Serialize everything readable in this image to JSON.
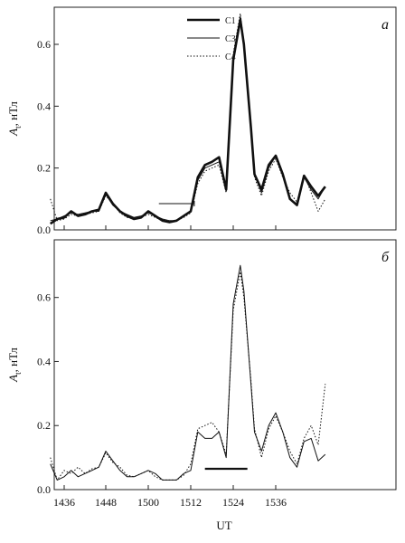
{
  "figure": {
    "xlabel": "UT",
    "x_tick_labels": [
      "1436",
      "1448",
      "1500",
      "1512",
      "1524",
      "1536"
    ]
  },
  "chart_data": [
    {
      "type": "line",
      "panel": "а",
      "ylabel_main": "A",
      "ylabel_sub": "t",
      "ylabel_unit": ", нТл",
      "ylim": [
        0,
        0.72
      ],
      "y_ticks": [
        0.0,
        0.2,
        0.4,
        0.6
      ],
      "y_tick_labels": [
        "0.0",
        "0.2",
        "0.4",
        "0.6"
      ],
      "xlim": [
        1431,
        1542
      ],
      "x_ticks": [
        1436,
        1448,
        1460,
        1472,
        1484,
        1496
      ],
      "legend_position": "top-center",
      "series": [
        {
          "name": "C1",
          "style": "thick-solid",
          "x": [
            1432,
            1434,
            1436,
            1438,
            1440,
            1442,
            1444,
            1446,
            1448,
            1450,
            1452,
            1454,
            1456,
            1458,
            1460,
            1462,
            1464,
            1466,
            1468,
            1470,
            1472,
            1474,
            1476,
            1478,
            1480,
            1482,
            1484,
            1486,
            1487,
            1489,
            1490,
            1492,
            1494,
            1496,
            1498,
            1500,
            1502,
            1504,
            1506,
            1508,
            1510
          ],
          "y": [
            0.02,
            0.035,
            0.04,
            0.06,
            0.045,
            0.05,
            0.06,
            0.065,
            0.12,
            0.085,
            0.06,
            0.045,
            0.035,
            0.04,
            0.06,
            0.045,
            0.03,
            0.025,
            0.03,
            0.045,
            0.06,
            0.17,
            0.21,
            0.22,
            0.235,
            0.13,
            0.55,
            0.68,
            0.6,
            0.33,
            0.18,
            0.13,
            0.21,
            0.24,
            0.18,
            0.1,
            0.08,
            0.175,
            0.14,
            0.11,
            0.14
          ]
        },
        {
          "name": "C3",
          "style": "thin-solid",
          "x": [
            1432,
            1434,
            1436,
            1438,
            1440,
            1442,
            1444,
            1446,
            1448,
            1450,
            1452,
            1454,
            1456,
            1458,
            1460,
            1462,
            1464,
            1466,
            1468,
            1470,
            1472,
            1474,
            1476,
            1478,
            1480,
            1482,
            1484,
            1486,
            1487,
            1489,
            1490,
            1492,
            1494,
            1496,
            1498,
            1500,
            1502,
            1504,
            1506,
            1508,
            1510
          ],
          "y": [
            0.03,
            0.035,
            0.045,
            0.055,
            0.05,
            0.055,
            0.06,
            0.06,
            0.115,
            0.08,
            0.06,
            0.05,
            0.04,
            0.045,
            0.055,
            0.045,
            0.035,
            0.03,
            0.03,
            0.045,
            0.06,
            0.16,
            0.2,
            0.21,
            0.22,
            0.13,
            0.56,
            0.69,
            0.6,
            0.33,
            0.18,
            0.12,
            0.2,
            0.24,
            0.18,
            0.1,
            0.085,
            0.17,
            0.13,
            0.1,
            0.14
          ]
        },
        {
          "name": "C4",
          "style": "dotted",
          "x": [
            1432,
            1434,
            1436,
            1438,
            1440,
            1442,
            1444,
            1446,
            1448,
            1450,
            1452,
            1454,
            1456,
            1458,
            1460,
            1462,
            1464,
            1466,
            1468,
            1470,
            1472,
            1474,
            1476,
            1478,
            1480,
            1482,
            1484,
            1486,
            1487,
            1489,
            1490,
            1492,
            1494,
            1496,
            1498,
            1500,
            1502,
            1504,
            1506,
            1508,
            1510
          ],
          "y": [
            0.1,
            0.03,
            0.035,
            0.05,
            0.045,
            0.05,
            0.055,
            0.06,
            0.11,
            0.085,
            0.055,
            0.04,
            0.035,
            0.04,
            0.05,
            0.04,
            0.03,
            0.025,
            0.03,
            0.04,
            0.055,
            0.15,
            0.19,
            0.2,
            0.21,
            0.12,
            0.57,
            0.7,
            0.61,
            0.34,
            0.17,
            0.11,
            0.19,
            0.23,
            0.17,
            0.12,
            0.09,
            0.18,
            0.12,
            0.06,
            0.1
          ]
        }
      ],
      "interval_bar": {
        "x_start": 1463,
        "x_end": 1473,
        "y": 0.085,
        "style": "thin"
      }
    },
    {
      "type": "line",
      "panel": "б",
      "ylabel_main": "A",
      "ylabel_sub": "t",
      "ylabel_unit": ", нТл",
      "ylim": [
        0,
        0.78
      ],
      "y_ticks": [
        0.0,
        0.2,
        0.4,
        0.6
      ],
      "y_tick_labels": [
        "0.0",
        "0.2",
        "0.4",
        "0.6"
      ],
      "xlim": [
        1431,
        1542
      ],
      "x_ticks": [
        1436,
        1448,
        1460,
        1472,
        1484,
        1496
      ],
      "series": [
        {
          "name": "C3",
          "style": "thin-solid",
          "x": [
            1432,
            1434,
            1436,
            1438,
            1440,
            1442,
            1444,
            1446,
            1448,
            1450,
            1452,
            1454,
            1456,
            1458,
            1460,
            1462,
            1464,
            1466,
            1468,
            1470,
            1472,
            1474,
            1476,
            1478,
            1480,
            1482,
            1484,
            1486,
            1487,
            1489,
            1490,
            1492,
            1494,
            1496,
            1498,
            1500,
            1502,
            1504,
            1506,
            1508,
            1510
          ],
          "y": [
            0.08,
            0.03,
            0.04,
            0.06,
            0.04,
            0.05,
            0.06,
            0.07,
            0.12,
            0.09,
            0.06,
            0.04,
            0.04,
            0.05,
            0.06,
            0.05,
            0.03,
            0.03,
            0.03,
            0.05,
            0.06,
            0.18,
            0.16,
            0.16,
            0.18,
            0.1,
            0.58,
            0.7,
            0.62,
            0.33,
            0.18,
            0.12,
            0.2,
            0.24,
            0.18,
            0.1,
            0.07,
            0.15,
            0.16,
            0.09,
            0.11
          ]
        },
        {
          "name": "C4",
          "style": "dotted",
          "x": [
            1432,
            1434,
            1436,
            1438,
            1440,
            1442,
            1444,
            1446,
            1448,
            1450,
            1452,
            1454,
            1456,
            1458,
            1460,
            1462,
            1464,
            1466,
            1468,
            1470,
            1472,
            1474,
            1476,
            1478,
            1480,
            1482,
            1484,
            1486,
            1487,
            1489,
            1490,
            1492,
            1494,
            1496,
            1498,
            1500,
            1502,
            1504,
            1506,
            1508,
            1510
          ],
          "y": [
            0.1,
            0.03,
            0.06,
            0.05,
            0.07,
            0.05,
            0.065,
            0.07,
            0.115,
            0.085,
            0.07,
            0.045,
            0.04,
            0.05,
            0.06,
            0.04,
            0.03,
            0.03,
            0.03,
            0.045,
            0.08,
            0.19,
            0.2,
            0.21,
            0.18,
            0.11,
            0.56,
            0.68,
            0.6,
            0.34,
            0.19,
            0.1,
            0.19,
            0.23,
            0.18,
            0.12,
            0.08,
            0.16,
            0.2,
            0.14,
            0.33
          ]
        }
      ],
      "interval_bar": {
        "x_start": 1476,
        "x_end": 1488,
        "y": 0.065,
        "style": "thick"
      }
    }
  ],
  "legend": {
    "items": [
      {
        "name": "C1",
        "style": "thick-solid"
      },
      {
        "name": "C3",
        "style": "thin-solid"
      },
      {
        "name": "C4",
        "style": "dotted"
      }
    ]
  }
}
